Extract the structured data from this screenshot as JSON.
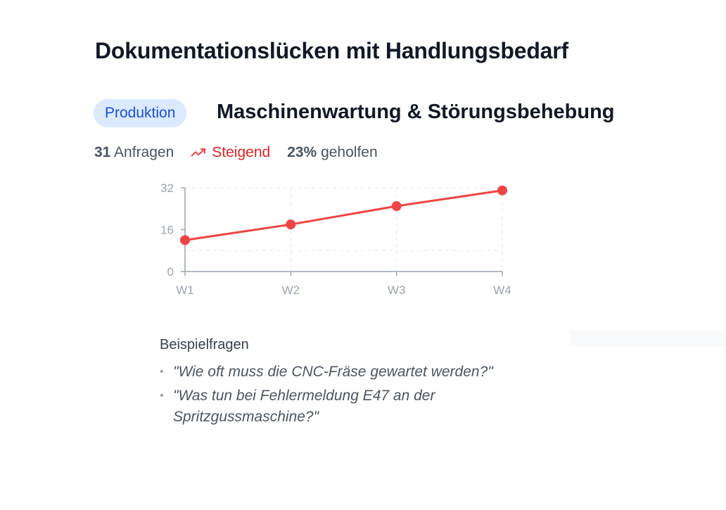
{
  "title": "Dokumentationslücken mit Handlungsbedarf",
  "badge": "Produktion",
  "topic": "Maschinenwartung & Störungsbehebung",
  "stats": {
    "count": "31",
    "count_label": "Anfragen",
    "trend": "Steigend",
    "trend_icon": "trending-up-icon",
    "helped": "23%",
    "helped_label": "geholfen"
  },
  "colors": {
    "line": "#ef4444",
    "trend": "#dc2626",
    "badge_bg": "#dbeafe",
    "badge_text": "#1d4ed8"
  },
  "chart_data": {
    "type": "line",
    "categories": [
      "W1",
      "W2",
      "W3",
      "W4"
    ],
    "values": [
      12,
      18,
      25,
      31
    ],
    "yticks": [
      "0",
      "16",
      "32"
    ],
    "ylim": [
      0,
      32
    ],
    "grid": true
  },
  "examples": {
    "title": "Beispielfragen",
    "items": [
      "\"Wie oft muss die CNC-Fräse gewartet werden?\"",
      "\"Was tun bei Fehlermeldung E47 an der Spritzgussmaschine?\""
    ]
  }
}
